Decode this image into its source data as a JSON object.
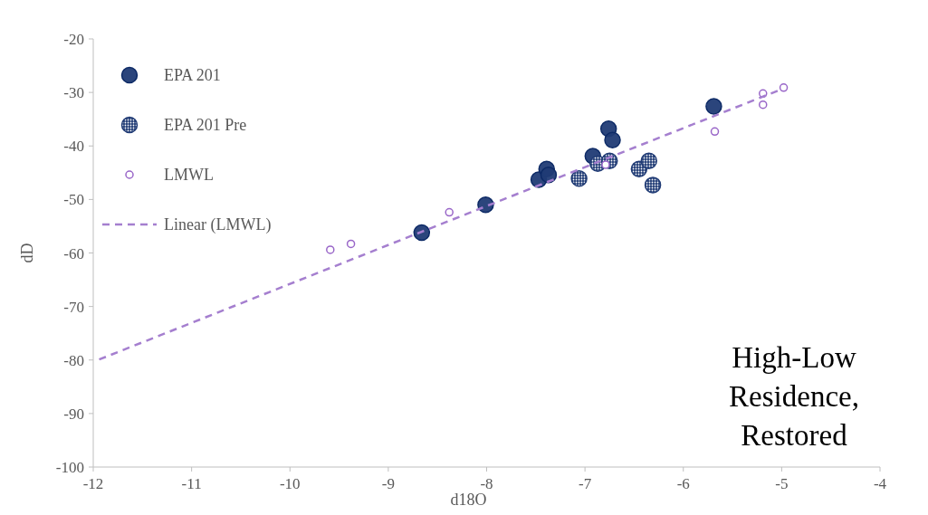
{
  "chart_data": {
    "type": "scatter",
    "xlabel": "d18O",
    "ylabel": "dD",
    "xlim": [
      -12,
      -4
    ],
    "ylim": [
      -100,
      -20
    ],
    "xticks": [
      -12,
      -11,
      -10,
      -9,
      -8,
      -7,
      -6,
      -5,
      -4
    ],
    "yticks": [
      -100,
      -90,
      -80,
      -70,
      -60,
      -50,
      -40,
      -30,
      -20
    ],
    "grid": false,
    "legend": "top left",
    "marker": "circle",
    "annotations": [
      "High-Low Residence, Restored"
    ],
    "series": [
      {
        "name": "EPA 201",
        "color": "#203b75",
        "x": [
          -8.66,
          -8.01,
          -7.47,
          -7.39,
          -7.37,
          -6.92,
          -6.76,
          -6.72,
          -5.69
        ],
        "values": [
          -56.2,
          -51.0,
          -46.3,
          -44.3,
          -45.4,
          -41.9,
          -36.8,
          -38.9,
          -32.6
        ]
      },
      {
        "name": "EPA 201 Pre",
        "color": "#203b75",
        "x": [
          -7.06,
          -6.87,
          -6.75,
          -6.45,
          -6.35,
          -6.31
        ],
        "values": [
          -46.1,
          -43.3,
          -42.8,
          -44.3,
          -42.8,
          -47.3
        ]
      },
      {
        "name": "LMWL",
        "color": "#9966c8",
        "x": [
          -9.59,
          -9.38,
          -8.38,
          -6.79,
          -5.68,
          -5.19,
          -5.19,
          -4.98
        ],
        "values": [
          -59.4,
          -58.3,
          -52.4,
          -43.5,
          -37.3,
          -30.2,
          -32.3,
          -29.1
        ]
      },
      {
        "name": "Linear (LMWL)",
        "type": "line",
        "marker": "none",
        "line_style": "dashed",
        "color": "#a57fcf",
        "x": [
          -11.94,
          -5
        ],
        "values": [
          -79.9,
          -29.4
        ]
      }
    ]
  }
}
